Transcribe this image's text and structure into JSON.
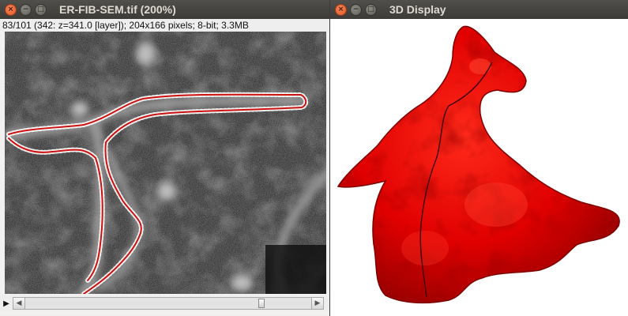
{
  "image_window": {
    "title": "ER-FIB-SEM.tif (200%)",
    "info": "83/101 (342:  z=341.0 [layer]); 204x166 pixels; 8-bit; 3.3MB",
    "controls": {
      "close": "×",
      "minimize": "−",
      "maximize": "□"
    },
    "play_glyph": "▶",
    "scroll_left_glyph": "◀",
    "scroll_right_glyph": "▶"
  },
  "viewer_window": {
    "title": "3D Display",
    "controls": {
      "close": "×",
      "minimize": "−",
      "maximize": "□"
    }
  },
  "colors": {
    "titlebar": "#3c3b37",
    "close_button": "#e45a2a",
    "mesh_red": "#e00000",
    "trace_red": "#cc1111"
  }
}
